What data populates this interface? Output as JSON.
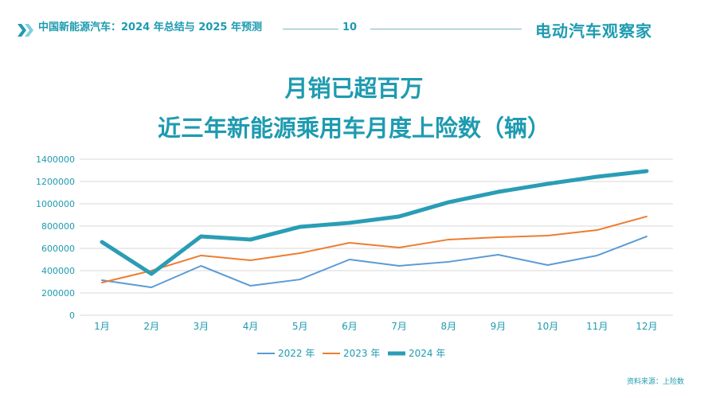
{
  "header": {
    "title": "中国新能源汽车：2024 年总结与 2025 年预测",
    "page": "10",
    "logo": "电动汽车观察家",
    "icon": "double-chevron-right-icon"
  },
  "title_line1": "月销已超百万",
  "title_line2": "近三年新能源乘用车月度上险数（辆）",
  "source": "资料来源：上险数",
  "chart_data": {
    "type": "line",
    "title": "近三年新能源乘用车月度上险数（辆）",
    "categories": [
      "1月",
      "2月",
      "3月",
      "4月",
      "5月",
      "6月",
      "7月",
      "8月",
      "9月",
      "10月",
      "11月",
      "12月"
    ],
    "ylim": [
      0,
      1400000
    ],
    "yticks": [
      0,
      200000,
      400000,
      600000,
      800000,
      1000000,
      1200000,
      1400000
    ],
    "grid": true,
    "legend": "bottom",
    "series": [
      {
        "name": "2022 年",
        "color": "#5b9bd5",
        "values": [
          314000,
          250000,
          443000,
          264000,
          321000,
          500000,
          443000,
          479000,
          543000,
          450000,
          536000,
          707000
        ]
      },
      {
        "name": "2023 年",
        "color": "#ed7d31",
        "values": [
          293000,
          400000,
          536000,
          493000,
          557000,
          650000,
          607000,
          679000,
          700000,
          714000,
          764000,
          886000
        ]
      },
      {
        "name": "2024 年",
        "color": "#2a9db5",
        "values": [
          657000,
          371000,
          707000,
          679000,
          793000,
          829000,
          886000,
          1014000,
          1107000,
          1179000,
          1243000,
          1293000
        ]
      }
    ]
  }
}
